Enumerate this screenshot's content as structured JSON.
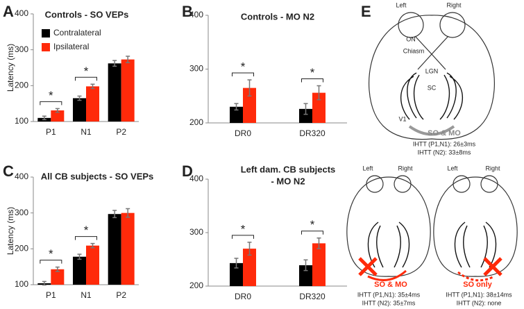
{
  "chart_data": [
    {
      "type": "bar",
      "panel": "A",
      "title": "Controls - SO VEPs",
      "ylabel": "Latency (ms)",
      "categories": [
        "P1",
        "N1",
        "P2"
      ],
      "series": [
        {
          "name": "Contralateral",
          "color": "#000000",
          "values": [
            110,
            165,
            262
          ],
          "errors": [
            5,
            6,
            8
          ]
        },
        {
          "name": "Ipsilateral",
          "color": "#ff2a0a",
          "values": [
            131,
            198,
            273
          ],
          "errors": [
            5,
            6,
            9
          ]
        }
      ],
      "ylim": [
        100,
        400
      ],
      "yticks": [
        100,
        200,
        300,
        400
      ],
      "legend": "upper-left",
      "annotations": [
        {
          "text": "*",
          "category": "P1"
        },
        {
          "text": "*",
          "category": "N1"
        }
      ]
    },
    {
      "type": "bar",
      "panel": "B",
      "title": "Controls - MO N2",
      "categories": [
        "DR0",
        "DR320"
      ],
      "series": [
        {
          "color": "#000000",
          "values": [
            230,
            226
          ],
          "errors": [
            6,
            10
          ]
        },
        {
          "color": "#ff2a0a",
          "values": [
            265,
            256
          ],
          "errors": [
            15,
            13
          ]
        }
      ],
      "ylim": [
        200,
        400
      ],
      "yticks": [
        200,
        300,
        400
      ],
      "annotations": [
        {
          "text": "*",
          "category": "DR0"
        },
        {
          "text": "*",
          "category": "DR320"
        }
      ]
    },
    {
      "type": "bar",
      "panel": "C",
      "title": "All CB subjects - SO VEPs",
      "ylabel": "Latency (ms)",
      "categories": [
        "P1",
        "N1",
        "P2"
      ],
      "series": [
        {
          "color": "#000000",
          "values": [
            104,
            178,
            297
          ],
          "errors": [
            5,
            7,
            10
          ]
        },
        {
          "color": "#ff2a0a",
          "values": [
            143,
            209,
            300
          ],
          "errors": [
            6,
            6,
            12
          ]
        }
      ],
      "ylim": [
        100,
        400
      ],
      "yticks": [
        100,
        200,
        300,
        400
      ],
      "annotations": [
        {
          "text": "*",
          "category": "P1"
        },
        {
          "text": "*",
          "category": "N1"
        }
      ]
    },
    {
      "type": "bar",
      "panel": "D",
      "title": [
        "Left dam. CB subjects",
        "- MO N2"
      ],
      "categories": [
        "DR0",
        "DR320"
      ],
      "series": [
        {
          "color": "#000000",
          "values": [
            243,
            239
          ],
          "errors": [
            9,
            10
          ]
        },
        {
          "color": "#ff2a0a",
          "values": [
            270,
            280
          ],
          "errors": [
            12,
            10
          ]
        }
      ],
      "ylim": [
        200,
        400
      ],
      "yticks": [
        200,
        300,
        400
      ],
      "annotations": [
        {
          "text": "*",
          "category": "DR0"
        },
        {
          "text": "*",
          "category": "DR320"
        }
      ]
    }
  ],
  "panel_e": {
    "label": "E",
    "top": {
      "left": "Left",
      "right": "Right",
      "on": "ON",
      "chiasm": "Chiasm",
      "lgn": "LGN",
      "sc": "SC",
      "v1": "V1",
      "arrow_label": "SO & MO",
      "ihtt_p1n1": "IHTT (P1,N1): 26±3ms",
      "ihtt_n2": "IHTT (N2): 33±8ms"
    },
    "bottom_left": {
      "left": "Left",
      "right": "Right",
      "arrow_label": "SO & MO",
      "ihtt_p1n1": "IHTT (P1,N1): 35±4ms",
      "ihtt_n2": "IHTT (N2): 35±7ms"
    },
    "bottom_right": {
      "left": "Left",
      "right": "Right",
      "arrow_label": "SO only",
      "ihtt_p1n1": "IHTT (P1,N1): 38±14ms",
      "ihtt_n2": "IHTT (N2): none"
    }
  }
}
